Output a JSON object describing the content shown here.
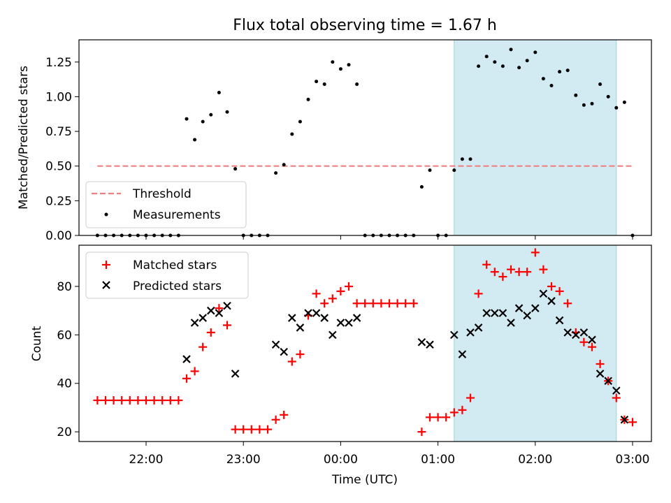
{
  "title": "Flux total observing time = 1.67 h",
  "xlabel": "Time (UTC)",
  "x_ticks": [
    "22:00",
    "23:00",
    "00:00",
    "01:00",
    "02:00",
    "03:00"
  ],
  "chart_data": [
    {
      "type": "scatter",
      "ylabel": "Matched/Predicted stars",
      "ylim": [
        0,
        1.41
      ],
      "y_ticks": [
        "0.00",
        "0.25",
        "0.50",
        "0.75",
        "1.00",
        "1.25"
      ],
      "x_unit": "UTC time",
      "highlight_span": {
        "x0": "01:10",
        "x1": "02:50",
        "color": "#add8e6"
      },
      "legend": {
        "position": "lower-left",
        "entries": [
          "Threshold",
          "Measurements"
        ]
      },
      "threshold": {
        "name": "Threshold",
        "y": 0.5,
        "x0": "21:30",
        "x1": "03:00",
        "color": "#f08080",
        "style": "dashed"
      },
      "series": [
        {
          "name": "Measurements",
          "color": "#000000",
          "points": [
            [
              "21:30",
              0.0
            ],
            [
              "21:35",
              0.0
            ],
            [
              "21:40",
              0.0
            ],
            [
              "21:45",
              0.0
            ],
            [
              "21:50",
              0.0
            ],
            [
              "21:55",
              0.0
            ],
            [
              "22:00",
              0.0
            ],
            [
              "22:05",
              0.0
            ],
            [
              "22:10",
              0.0
            ],
            [
              "22:15",
              0.0
            ],
            [
              "22:20",
              0.0
            ],
            [
              "22:25",
              0.84
            ],
            [
              "22:30",
              0.69
            ],
            [
              "22:35",
              0.82
            ],
            [
              "22:40",
              0.87
            ],
            [
              "22:45",
              1.03
            ],
            [
              "22:50",
              0.89
            ],
            [
              "22:55",
              0.48
            ],
            [
              "23:00",
              0.0
            ],
            [
              "23:05",
              0.0
            ],
            [
              "23:10",
              0.0
            ],
            [
              "23:15",
              0.0
            ],
            [
              "23:20",
              0.45
            ],
            [
              "23:25",
              0.51
            ],
            [
              "23:30",
              0.73
            ],
            [
              "23:35",
              0.82
            ],
            [
              "23:40",
              0.98
            ],
            [
              "23:45",
              1.11
            ],
            [
              "23:50",
              1.09
            ],
            [
              "23:55",
              1.25
            ],
            [
              "00:00",
              1.2
            ],
            [
              "00:05",
              1.23
            ],
            [
              "00:10",
              1.09
            ],
            [
              "00:15",
              0.0
            ],
            [
              "00:20",
              0.0
            ],
            [
              "00:25",
              0.0
            ],
            [
              "00:30",
              0.0
            ],
            [
              "00:35",
              0.0
            ],
            [
              "00:40",
              0.0
            ],
            [
              "00:45",
              0.0
            ],
            [
              "00:50",
              0.35
            ],
            [
              "00:55",
              0.47
            ],
            [
              "01:00",
              0.0
            ],
            [
              "01:05",
              0.0
            ],
            [
              "01:10",
              0.47
            ],
            [
              "01:15",
              0.55
            ],
            [
              "01:20",
              0.55
            ],
            [
              "01:25",
              1.22
            ],
            [
              "01:30",
              1.29
            ],
            [
              "01:35",
              1.25
            ],
            [
              "01:40",
              1.22
            ],
            [
              "01:45",
              1.34
            ],
            [
              "01:50",
              1.21
            ],
            [
              "01:55",
              1.26
            ],
            [
              "02:00",
              1.32
            ],
            [
              "02:05",
              1.13
            ],
            [
              "02:10",
              1.08
            ],
            [
              "02:15",
              1.18
            ],
            [
              "02:20",
              1.19
            ],
            [
              "02:25",
              1.01
            ],
            [
              "02:30",
              0.94
            ],
            [
              "02:35",
              0.95
            ],
            [
              "02:40",
              1.09
            ],
            [
              "02:45",
              1.0
            ],
            [
              "02:50",
              0.92
            ],
            [
              "02:55",
              0.96
            ],
            [
              "03:00",
              0.0
            ]
          ]
        }
      ]
    },
    {
      "type": "scatter",
      "ylabel": "Count",
      "ylim": [
        16,
        97
      ],
      "y_ticks": [
        "20",
        "40",
        "60",
        "80"
      ],
      "highlight_span": {
        "x0": "01:10",
        "x1": "02:50",
        "color": "#add8e6"
      },
      "legend": {
        "position": "upper-left",
        "entries": [
          "Matched stars",
          "Predicted stars"
        ]
      },
      "series": [
        {
          "name": "Matched stars",
          "marker": "plus",
          "color": "#ff0000",
          "points": [
            [
              "21:30",
              33
            ],
            [
              "21:35",
              33
            ],
            [
              "21:40",
              33
            ],
            [
              "21:45",
              33
            ],
            [
              "21:50",
              33
            ],
            [
              "21:55",
              33
            ],
            [
              "22:00",
              33
            ],
            [
              "22:05",
              33
            ],
            [
              "22:10",
              33
            ],
            [
              "22:15",
              33
            ],
            [
              "22:20",
              33
            ],
            [
              "22:25",
              42
            ],
            [
              "22:30",
              45
            ],
            [
              "22:35",
              55
            ],
            [
              "22:40",
              61
            ],
            [
              "22:45",
              71
            ],
            [
              "22:50",
              64
            ],
            [
              "22:55",
              21
            ],
            [
              "23:00",
              21
            ],
            [
              "23:05",
              21
            ],
            [
              "23:10",
              21
            ],
            [
              "23:15",
              21
            ],
            [
              "23:20",
              25
            ],
            [
              "23:25",
              27
            ],
            [
              "23:30",
              49
            ],
            [
              "23:35",
              52
            ],
            [
              "23:40",
              68
            ],
            [
              "23:45",
              77
            ],
            [
              "23:50",
              73
            ],
            [
              "23:55",
              75
            ],
            [
              "00:00",
              78
            ],
            [
              "00:05",
              80
            ],
            [
              "00:10",
              73
            ],
            [
              "00:15",
              73
            ],
            [
              "00:20",
              73
            ],
            [
              "00:25",
              73
            ],
            [
              "00:30",
              73
            ],
            [
              "00:35",
              73
            ],
            [
              "00:40",
              73
            ],
            [
              "00:45",
              73
            ],
            [
              "00:50",
              20
            ],
            [
              "00:55",
              26
            ],
            [
              "01:00",
              26
            ],
            [
              "01:05",
              26
            ],
            [
              "01:10",
              28
            ],
            [
              "01:15",
              29
            ],
            [
              "01:20",
              34
            ],
            [
              "01:25",
              77
            ],
            [
              "01:30",
              89
            ],
            [
              "01:35",
              86
            ],
            [
              "01:40",
              84
            ],
            [
              "01:45",
              87
            ],
            [
              "01:50",
              86
            ],
            [
              "01:55",
              86
            ],
            [
              "02:00",
              94
            ],
            [
              "02:05",
              87
            ],
            [
              "02:10",
              80
            ],
            [
              "02:15",
              78
            ],
            [
              "02:20",
              73
            ],
            [
              "02:25",
              61
            ],
            [
              "02:30",
              57
            ],
            [
              "02:35",
              55
            ],
            [
              "02:40",
              48
            ],
            [
              "02:45",
              41
            ],
            [
              "02:50",
              34
            ],
            [
              "02:55",
              25
            ],
            [
              "03:00",
              24
            ]
          ]
        },
        {
          "name": "Predicted stars",
          "marker": "x",
          "color": "#000000",
          "points": [
            [
              "22:25",
              50
            ],
            [
              "22:30",
              65
            ],
            [
              "22:35",
              67
            ],
            [
              "22:40",
              70
            ],
            [
              "22:45",
              69
            ],
            [
              "22:50",
              72
            ],
            [
              "22:55",
              44
            ],
            [
              "23:20",
              56
            ],
            [
              "23:25",
              53
            ],
            [
              "23:30",
              67
            ],
            [
              "23:35",
              63
            ],
            [
              "23:40",
              69
            ],
            [
              "23:45",
              69
            ],
            [
              "23:50",
              67
            ],
            [
              "23:55",
              60
            ],
            [
              "00:00",
              65
            ],
            [
              "00:05",
              65
            ],
            [
              "00:10",
              67
            ],
            [
              "00:50",
              57
            ],
            [
              "00:55",
              56
            ],
            [
              "01:10",
              60
            ],
            [
              "01:15",
              52
            ],
            [
              "01:20",
              61
            ],
            [
              "01:25",
              63
            ],
            [
              "01:30",
              69
            ],
            [
              "01:35",
              69
            ],
            [
              "01:40",
              69
            ],
            [
              "01:45",
              65
            ],
            [
              "01:50",
              71
            ],
            [
              "01:55",
              68
            ],
            [
              "02:00",
              71
            ],
            [
              "02:05",
              77
            ],
            [
              "02:10",
              74
            ],
            [
              "02:15",
              66
            ],
            [
              "02:20",
              61
            ],
            [
              "02:25",
              60
            ],
            [
              "02:30",
              61
            ],
            [
              "02:35",
              58
            ],
            [
              "02:40",
              44
            ],
            [
              "02:45",
              41
            ],
            [
              "02:50",
              37
            ],
            [
              "02:55",
              25
            ]
          ]
        }
      ]
    }
  ]
}
